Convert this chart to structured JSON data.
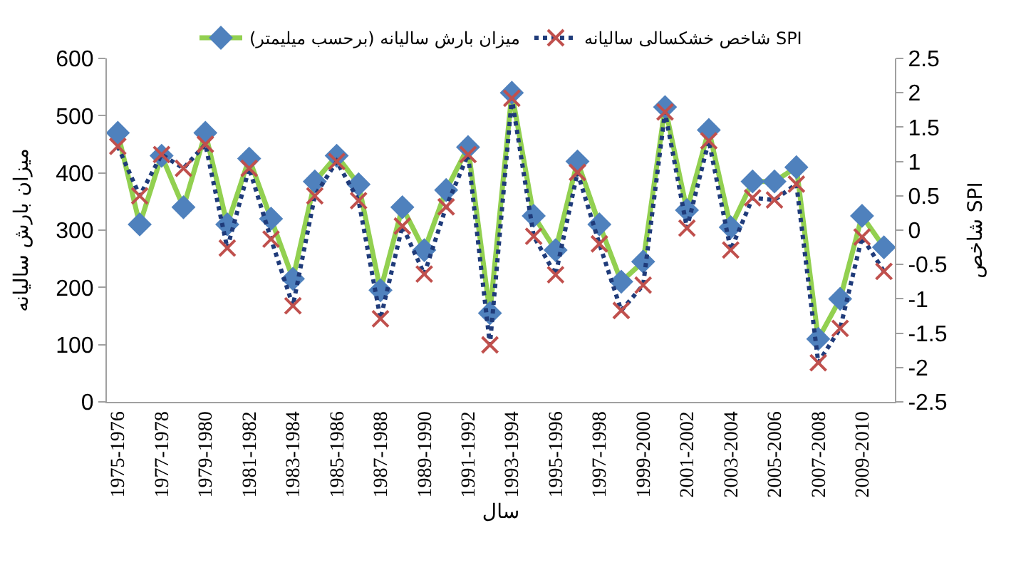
{
  "chart_data": {
    "type": "line",
    "xlabel": "سال",
    "ylabel": "میزان بارش سالیانه",
    "y2label": "شاخص SPI",
    "categories": [
      "1975-1976",
      null,
      "1977-1978",
      null,
      "1979-1980",
      null,
      "1981-1982",
      null,
      "1983-1984",
      null,
      "1985-1986",
      null,
      "1987-1988",
      null,
      "1989-1990",
      null,
      "1991-1992",
      null,
      "1993-1994",
      null,
      "1995-1996",
      null,
      "1997-1998",
      null,
      "1999-2000",
      null,
      "2001-2002",
      null,
      "2003-2004",
      null,
      "2005-2006",
      null,
      "2007-2008",
      null,
      "2009-2010",
      null
    ],
    "series": [
      {
        "name": "میزان بارش سالیانه (برحسب میلیمتر)",
        "color": "#92d050",
        "marker": "diamond",
        "line_style": "solid",
        "colors": [
          "#4f81bd",
          "#4f81bd",
          "#4f81bd",
          "#4f81bd",
          "#4f81bd",
          "#4f81bd",
          "#4f81bd",
          "#4f81bd",
          "#4f81bd",
          "#4f81bd",
          "#4f81bd",
          "#4f81bd",
          "#4f81bd",
          "#4f81bd",
          "#4f81bd",
          "#4f81bd",
          "#4f81bd",
          "#4f81bd",
          "#4f81bd",
          "#4f81bd",
          "#4f81bd",
          "#4f81bd",
          "#4f81bd",
          "#4f81bd",
          "#4f81bd",
          "#4f81bd",
          "#4f81bd",
          "#4f81bd",
          "#4f81bd",
          "#4f81bd",
          "#4f81bd",
          "#4f81bd",
          "#4f81bd",
          "#4f81bd",
          "#4f81bd",
          "#4f81bd"
        ],
        "values": [
          470,
          310,
          430,
          340,
          470,
          310,
          425,
          320,
          215,
          385,
          430,
          380,
          195,
          340,
          265,
          370,
          445,
          155,
          540,
          325,
          265,
          420,
          310,
          210,
          245,
          515,
          335,
          475,
          305,
          385,
          385,
          410,
          110,
          180,
          325,
          270
        ]
      },
      {
        "name": "شاخص خشکسالی سالیانه SPI",
        "color": "#1f3b7a",
        "marker": "cross",
        "line_style": "dotted",
        "axis": "y2",
        "colors": [
          "#c0504d",
          "#c0504d",
          "#c0504d",
          "#c0504d",
          "#c0504d",
          "#c0504d",
          "#c0504d",
          "#c0504d",
          "#c0504d",
          "#c0504d",
          "#c0504d",
          "#c0504d",
          "#c0504d",
          "#c0504d",
          "#c0504d",
          "#c0504d",
          "#c0504d",
          "#c0504d",
          "#c0504d",
          "#c0504d",
          "#c0504d",
          "#c0504d",
          "#c0504d",
          "#c0504d",
          "#c0504d",
          "#c0504d",
          "#c0504d",
          "#c0504d",
          "#c0504d",
          "#c0504d",
          "#c0504d",
          "#c0504d",
          "#c0504d",
          "#c0504d",
          "#c0504d",
          "#c0504d"
        ],
        "values": [
          1.22,
          0.5,
          1.1,
          0.9,
          1.25,
          -0.26,
          0.9,
          -0.13,
          -1.1,
          0.5,
          1.0,
          0.43,
          -1.29,
          0.06,
          -0.64,
          0.34,
          1.1,
          -1.67,
          1.92,
          -0.09,
          -0.65,
          0.84,
          -0.2,
          -1.17,
          -0.8,
          1.72,
          0.03,
          1.3,
          -0.29,
          0.47,
          0.44,
          0.67,
          -1.93,
          -1.43,
          -0.1,
          -0.6
        ]
      }
    ],
    "ylim": [
      0,
      600
    ],
    "yticks": [
      0,
      100,
      200,
      300,
      400,
      500,
      600
    ],
    "y2lim": [
      -2.5,
      2.5
    ],
    "y2ticks": [
      -2.5,
      -2,
      -1.5,
      -1,
      -0.5,
      0,
      0.5,
      1,
      1.5,
      2,
      2.5
    ],
    "legend": "top"
  }
}
